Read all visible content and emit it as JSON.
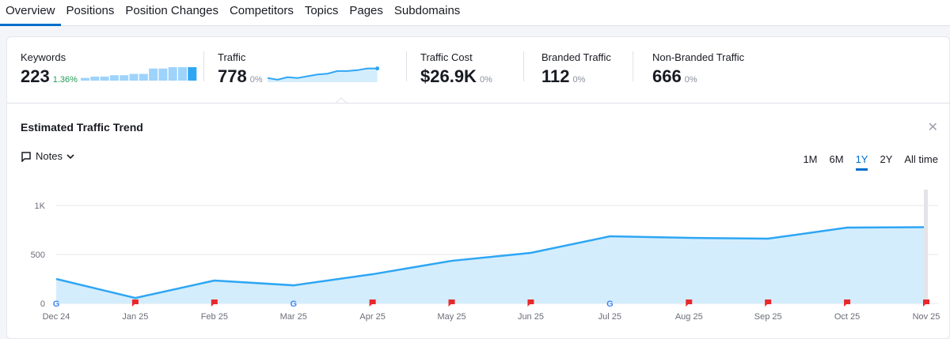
{
  "tabs": [
    "Overview",
    "Positions",
    "Position Changes",
    "Competitors",
    "Topics",
    "Pages",
    "Subdomains"
  ],
  "metrics": [
    {
      "label": "Keywords",
      "value": "223",
      "change": "1.36%",
      "change_color": "#1f9d55"
    },
    {
      "label": "Traffic",
      "value": "778",
      "change": "0%"
    },
    {
      "label": "Traffic Cost",
      "value": "$26.9K",
      "change": "0%"
    },
    {
      "label": "Branded Traffic",
      "value": "112",
      "change": "0%"
    },
    {
      "label": "Non-Branded Traffic",
      "value": "666",
      "change": "0%"
    }
  ],
  "keywords_sparkline": [
    2,
    3,
    3,
    4,
    4,
    5,
    5,
    9,
    9,
    10,
    10,
    10
  ],
  "traffic_sparkline": [
    3,
    1,
    4,
    3,
    5,
    7,
    8,
    11,
    11,
    12,
    14,
    14
  ],
  "panel": {
    "title": "Estimated Traffic Trend",
    "notes_label": "Notes",
    "ranges": [
      "1M",
      "6M",
      "1Y",
      "2Y",
      "All time"
    ],
    "active_range": "1Y"
  },
  "chart_data": {
    "type": "area",
    "x": [
      "Dec 24",
      "Jan 25",
      "Feb 25",
      "Mar 25",
      "Apr 25",
      "May 25",
      "Jun 25",
      "Jul 25",
      "Aug 25",
      "Sep 25",
      "Oct 25",
      "Nov 25"
    ],
    "values": [
      250,
      56,
      234,
      185,
      298,
      435,
      516,
      685,
      669,
      661,
      774,
      778
    ],
    "markers": [
      "google",
      "note",
      "note",
      "google",
      "note",
      "note",
      "note",
      "google",
      "note",
      "note",
      "note",
      "note"
    ],
    "yticks": [
      {
        "v": 0,
        "label": "0"
      },
      {
        "v": 500,
        "label": "500"
      },
      {
        "v": 1000,
        "label": "1K"
      }
    ],
    "ylim": [
      0,
      1000
    ],
    "color": "#2ea6f4",
    "fill": "#d4edfc"
  }
}
